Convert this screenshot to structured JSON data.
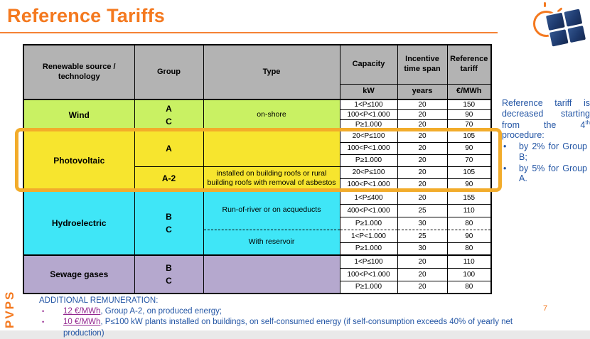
{
  "slide": {
    "title": "Reference Tariffs",
    "page_number": "7",
    "vertical_label": "PVPS"
  },
  "icons": {
    "logo": "sun-and-solar-panel"
  },
  "colors": {
    "accent_orange": "#F4791F",
    "highlight_box": "#F2AC2B",
    "wind_green": "#C9F163",
    "pv_yellow": "#F7E52E",
    "hydro_cyan": "#3FE6F7",
    "sewage_purple": "#B5A8CE",
    "header_grey": "#B3B3B3",
    "note_blue": "#2456A5",
    "link_purple": "#93278F"
  },
  "table": {
    "headers": {
      "source": "Renewable source /\ntechnology",
      "group": "Group",
      "type": "Type",
      "capacity": "Capacity",
      "incentive": "Incentive\ntime span",
      "tariff": "Reference\ntariff",
      "units": {
        "capacity": "kW",
        "incentive": "years",
        "tariff": "€/MWh"
      }
    },
    "wind": {
      "source": "Wind",
      "group": "A\nC",
      "type": "on-shore",
      "rows": [
        [
          "1<P≤100",
          "20",
          "150"
        ],
        [
          "100<P<1.000",
          "20",
          "90"
        ],
        [
          "P≥1.000",
          "20",
          "70"
        ]
      ]
    },
    "photovoltaic": {
      "source": "Photovoltaic",
      "group_a": "A",
      "rows_a": [
        [
          "20<P≤100",
          "20",
          "105"
        ],
        [
          "100<P<1.000",
          "20",
          "90"
        ],
        [
          "P≥1.000",
          "20",
          "70"
        ]
      ],
      "group_a2": "A-2",
      "type_a2": "installed on  building roofs or rural\nbuilding roofs with removal of asbestos",
      "rows_a2": [
        [
          "20<P≤100",
          "20",
          "105"
        ],
        [
          "100<P<1.000",
          "20",
          "90"
        ]
      ]
    },
    "hydroelectric": {
      "source": "Hydroelectric",
      "group": "B\nC",
      "type_run": "Run-of-river or on acqueducts",
      "rows_run": [
        [
          "1<P≤400",
          "20",
          "155"
        ],
        [
          "400<P<1.000",
          "25",
          "110"
        ],
        [
          "P≥1.000",
          "30",
          "80"
        ]
      ],
      "type_reservoir": "With reservoir",
      "rows_reservoir": [
        [
          "1<P<1.000",
          "25",
          "90"
        ],
        [
          "P≥1.000",
          "30",
          "80"
        ]
      ]
    },
    "sewage": {
      "source": "Sewage gases",
      "group": "B\nC",
      "rows": [
        [
          "1<P≤100",
          "20",
          "110"
        ],
        [
          "100<P<1.000",
          "20",
          "100"
        ],
        [
          "P≥1.000",
          "20",
          "80"
        ]
      ]
    }
  },
  "side_note": {
    "text_before_sup": "Reference tariff is decreased starting from the 4",
    "sup": "th",
    "text_after_sup": " procedure:",
    "bullets": [
      "by 2% for Group B;",
      "by 5% for Group A."
    ]
  },
  "footer": {
    "heading": "ADDITIONAL REMUNERATION:",
    "bullets": [
      {
        "link": "12 €/MWh",
        "text": ", Group A-2, on produced energy;"
      },
      {
        "link": "10 €/MWh",
        "text": ", P≤100 kW plants installed on buildings, on self-consumed energy (if self-consumption exceeds 40% of yearly net production)"
      }
    ]
  }
}
